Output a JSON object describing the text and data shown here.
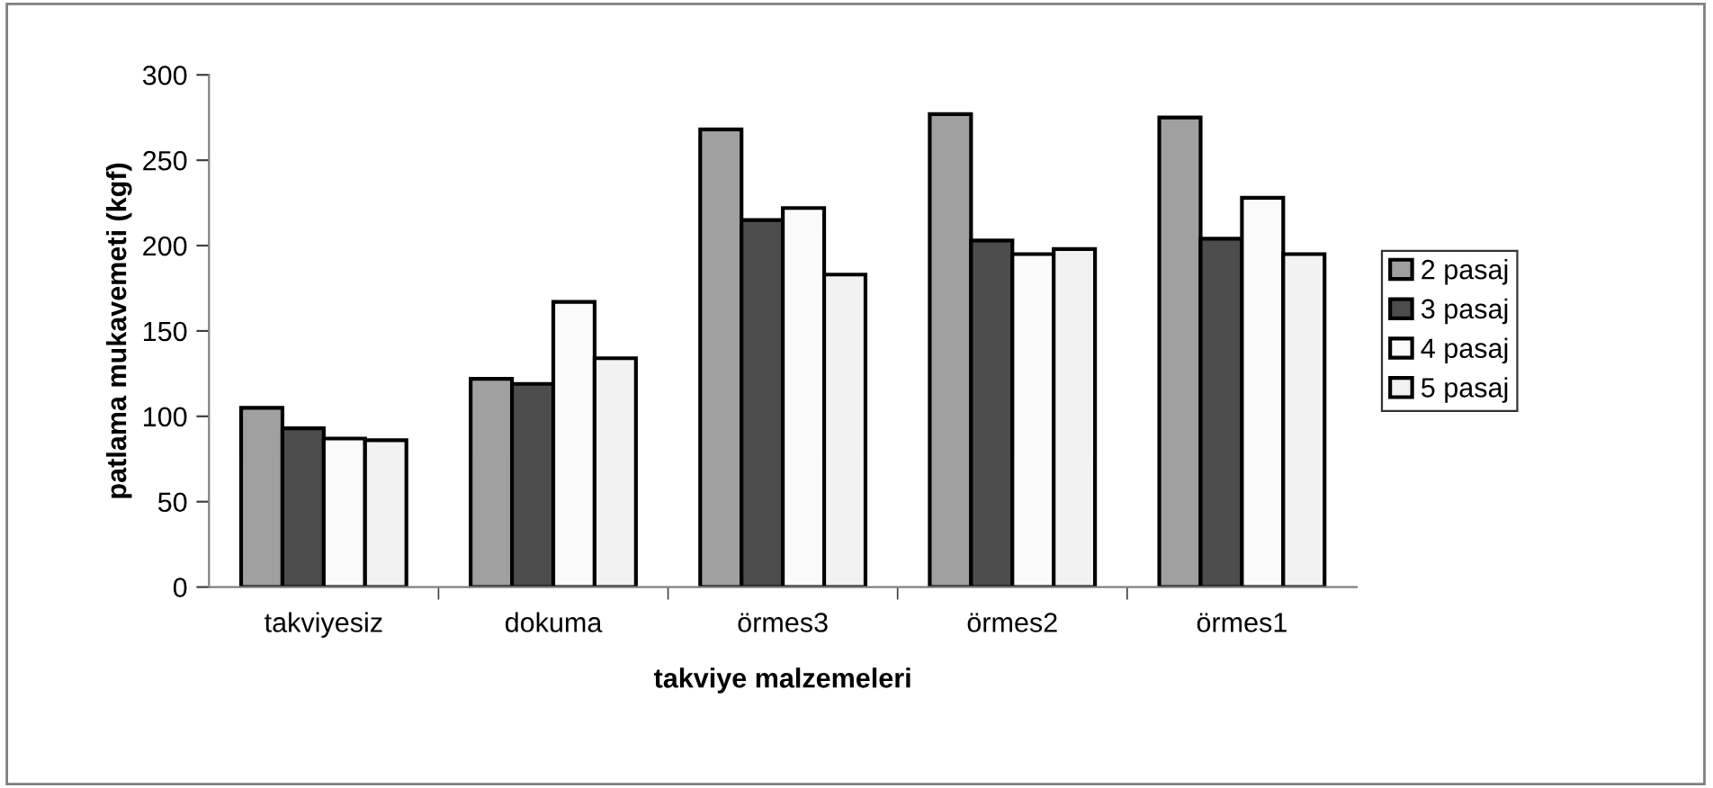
{
  "chart_data": {
    "type": "bar",
    "xlabel": "takviye malzemeleri",
    "ylabel": "patlama mukavemeti (kgf)",
    "categories": [
      "takviyesiz",
      "dokuma",
      "örmes3",
      "örmes2",
      "örmes1"
    ],
    "series": [
      {
        "name": "2 pasaj",
        "color": "#a0a0a0",
        "values": [
          105,
          122,
          268,
          277,
          275
        ]
      },
      {
        "name": "3 pasaj",
        "color": "#4d4d4d",
        "values": [
          93,
          119,
          215,
          203,
          204
        ]
      },
      {
        "name": "4 pasaj",
        "color": "#fafafa",
        "values": [
          87,
          167,
          222,
          195,
          228
        ]
      },
      {
        "name": "5 pasaj",
        "color": "#f2f2f2",
        "values": [
          86,
          134,
          183,
          198,
          195
        ]
      }
    ],
    "ylim": [
      0,
      300
    ],
    "yticks": [
      0,
      50,
      100,
      150,
      200,
      250,
      300
    ],
    "grid": false,
    "legend": "right"
  }
}
